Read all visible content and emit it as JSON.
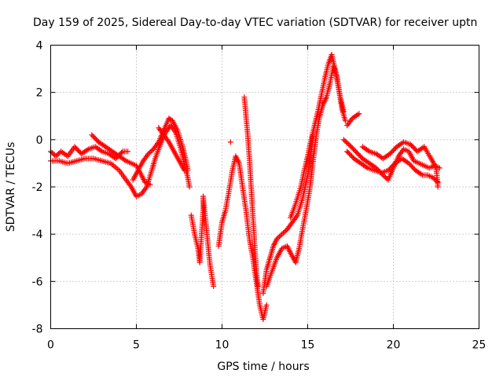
{
  "chart_data": {
    "type": "scatter",
    "title": "Day 159 of 2025, Sidereal Day-to-day VTEC variation (SDTVAR) for receiver uptn",
    "xlabel": "GPS time / hours",
    "ylabel": "SDTVAR / TECUs",
    "xlim": [
      0,
      25
    ],
    "ylim": [
      -8,
      4
    ],
    "x_ticks": [
      0,
      5,
      10,
      15,
      20,
      25
    ],
    "y_ticks": [
      -8,
      -6,
      -4,
      -2,
      0,
      2,
      4
    ],
    "x_tick_labels": [
      "0",
      "5",
      "10",
      "15",
      "20",
      "25"
    ],
    "y_tick_labels": [
      "-8",
      "-6",
      "-4",
      "-2",
      "0",
      "2",
      "4"
    ],
    "grid": true,
    "marker": "plus",
    "series": [
      {
        "name": "SDTVAR",
        "color": "#ff0000",
        "traces": [
          [
            [
              0,
              -0.5
            ],
            [
              0.3,
              -0.7
            ],
            [
              0.6,
              -0.5
            ],
            [
              1.0,
              -0.7
            ],
            [
              1.4,
              -0.3
            ],
            [
              1.8,
              -0.6
            ],
            [
              2.2,
              -0.4
            ],
            [
              2.6,
              -0.3
            ],
            [
              3.0,
              -0.5
            ],
            [
              3.4,
              -0.6
            ],
            [
              3.8,
              -0.8
            ],
            [
              4.2,
              -0.5
            ],
            [
              4.5,
              -0.5
            ]
          ],
          [
            [
              0,
              -0.9
            ],
            [
              0.5,
              -0.9
            ],
            [
              1.0,
              -1.0
            ],
            [
              1.5,
              -0.9
            ],
            [
              2.0,
              -0.8
            ],
            [
              2.5,
              -0.8
            ],
            [
              3.0,
              -0.9
            ],
            [
              3.5,
              -1.0
            ],
            [
              4.0,
              -1.3
            ],
            [
              4.4,
              -1.7
            ],
            [
              4.7,
              -2.0
            ],
            [
              5.0,
              -2.4
            ],
            [
              5.3,
              -2.3
            ],
            [
              5.6,
              -2.0
            ],
            [
              5.9,
              -1.3
            ],
            [
              6.1,
              -0.8
            ],
            [
              6.4,
              -0.2
            ],
            [
              6.7,
              0.3
            ],
            [
              7.0,
              0.6
            ],
            [
              7.3,
              0.3
            ],
            [
              7.6,
              -0.4
            ],
            [
              7.8,
              -1.0
            ],
            [
              8.0,
              -1.6
            ],
            [
              8.1,
              -2.0
            ]
          ],
          [
            [
              2.4,
              0.2
            ],
            [
              2.8,
              -0.1
            ],
            [
              3.2,
              -0.3
            ],
            [
              3.6,
              -0.5
            ],
            [
              4.0,
              -0.7
            ],
            [
              4.4,
              -0.9
            ],
            [
              4.7,
              -1.0
            ],
            [
              5.0,
              -1.1
            ],
            [
              5.3,
              -1.5
            ],
            [
              5.5,
              -1.8
            ],
            [
              5.8,
              -1.9
            ]
          ],
          [
            [
              4.8,
              -1.7
            ],
            [
              5.1,
              -1.3
            ],
            [
              5.4,
              -0.9
            ],
            [
              5.7,
              -0.6
            ],
            [
              6.0,
              -0.4
            ],
            [
              6.3,
              -0.1
            ],
            [
              6.6,
              0.4
            ],
            [
              6.9,
              0.9
            ],
            [
              7.1,
              0.8
            ],
            [
              7.4,
              0.4
            ],
            [
              7.7,
              -0.3
            ],
            [
              7.9,
              -0.9
            ],
            [
              8.0,
              -1.3
            ]
          ],
          [
            [
              6.3,
              0.5
            ],
            [
              6.6,
              0.2
            ],
            [
              6.9,
              -0.1
            ],
            [
              7.2,
              -0.5
            ],
            [
              7.5,
              -0.9
            ],
            [
              7.8,
              -1.3
            ]
          ],
          [
            [
              8.2,
              -3.2
            ],
            [
              8.4,
              -4.0
            ],
            [
              8.6,
              -4.6
            ],
            [
              8.7,
              -5.2
            ],
            [
              8.9,
              -3.0
            ],
            [
              8.9,
              -2.4
            ],
            [
              9.3,
              -5.3
            ],
            [
              9.5,
              -6.2
            ]
          ],
          [
            [
              9.8,
              -4.5
            ],
            [
              10.0,
              -3.5
            ],
            [
              10.2,
              -3.0
            ],
            [
              10.4,
              -2.2
            ],
            [
              10.6,
              -1.3
            ],
            [
              10.8,
              -0.7
            ],
            [
              11.0,
              -1.0
            ],
            [
              11.2,
              -2.0
            ],
            [
              11.4,
              -3.0
            ],
            [
              11.6,
              -4.2
            ],
            [
              11.8,
              -5.0
            ],
            [
              12.0,
              -6.0
            ],
            [
              12.2,
              -7.0
            ],
            [
              12.4,
              -7.6
            ],
            [
              12.6,
              -7.0
            ]
          ],
          [
            [
              10.5,
              -0.1
            ]
          ],
          [
            [
              11.3,
              1.8
            ],
            [
              11.4,
              1.0
            ],
            [
              11.5,
              0.2
            ],
            [
              11.6,
              -0.8
            ],
            [
              11.7,
              -2.0
            ],
            [
              11.8,
              -3.2
            ],
            [
              11.9,
              -4.4
            ],
            [
              12.0,
              -5.6
            ],
            [
              12.1,
              -6.2
            ]
          ],
          [
            [
              12.4,
              -6.5
            ],
            [
              12.6,
              -5.5
            ],
            [
              12.8,
              -5.0
            ],
            [
              13.0,
              -4.5
            ],
            [
              13.2,
              -4.2
            ],
            [
              13.5,
              -4.0
            ],
            [
              13.8,
              -3.8
            ],
            [
              14.1,
              -3.5
            ],
            [
              14.4,
              -3.2
            ],
            [
              14.7,
              -2.5
            ],
            [
              15.0,
              -1.5
            ],
            [
              15.2,
              -0.5
            ],
            [
              15.3,
              0.2
            ]
          ],
          [
            [
              12.6,
              -6.2
            ],
            [
              12.9,
              -5.6
            ],
            [
              13.2,
              -5.0
            ],
            [
              13.5,
              -4.6
            ],
            [
              13.8,
              -4.5
            ],
            [
              14.0,
              -4.8
            ],
            [
              14.3,
              -5.2
            ],
            [
              14.5,
              -4.6
            ],
            [
              14.7,
              -3.8
            ],
            [
              14.9,
              -3.0
            ],
            [
              15.1,
              -2.2
            ],
            [
              15.3,
              -1.0
            ],
            [
              15.5,
              0.2
            ],
            [
              15.7,
              1.0
            ],
            [
              15.9,
              1.5
            ],
            [
              16.1,
              1.8
            ],
            [
              16.3,
              2.4
            ],
            [
              16.5,
              3.1
            ],
            [
              16.7,
              2.7
            ],
            [
              16.9,
              1.8
            ],
            [
              17.1,
              1.2
            ]
          ],
          [
            [
              14.0,
              -3.3
            ],
            [
              14.3,
              -2.7
            ],
            [
              14.6,
              -2.0
            ],
            [
              14.8,
              -1.3
            ],
            [
              15.0,
              -0.7
            ],
            [
              15.2,
              0.0
            ],
            [
              15.4,
              0.6
            ],
            [
              15.6,
              1.2
            ],
            [
              15.8,
              1.9
            ],
            [
              16.0,
              2.6
            ],
            [
              16.2,
              3.2
            ],
            [
              16.4,
              3.6
            ],
            [
              16.6,
              3.0
            ],
            [
              16.8,
              2.2
            ],
            [
              17.0,
              1.3
            ],
            [
              17.2,
              0.8
            ]
          ],
          [
            [
              17.3,
              0.6
            ],
            [
              17.6,
              0.9
            ],
            [
              18.0,
              1.1
            ]
          ],
          [
            [
              17.1,
              0.0
            ],
            [
              17.4,
              -0.2
            ],
            [
              17.8,
              -0.5
            ],
            [
              18.2,
              -0.8
            ],
            [
              18.6,
              -1.0
            ],
            [
              19.0,
              -1.2
            ],
            [
              19.4,
              -1.5
            ],
            [
              19.7,
              -1.7
            ],
            [
              20.0,
              -1.2
            ],
            [
              20.3,
              -0.7
            ],
            [
              20.6,
              -0.4
            ],
            [
              20.9,
              -0.5
            ],
            [
              21.2,
              -0.9
            ],
            [
              21.5,
              -1.0
            ],
            [
              21.8,
              -1.1
            ],
            [
              22.1,
              -1.2
            ],
            [
              22.4,
              -1.1
            ],
            [
              22.7,
              -1.2
            ]
          ],
          [
            [
              17.3,
              -0.5
            ],
            [
              17.7,
              -0.8
            ],
            [
              18.1,
              -1.0
            ],
            [
              18.5,
              -1.2
            ],
            [
              18.9,
              -1.3
            ],
            [
              19.3,
              -1.4
            ],
            [
              19.7,
              -1.3
            ],
            [
              20.1,
              -1.0
            ],
            [
              20.5,
              -0.8
            ],
            [
              20.9,
              -1.0
            ],
            [
              21.3,
              -1.3
            ],
            [
              21.7,
              -1.5
            ],
            [
              22.0,
              -1.5
            ],
            [
              22.3,
              -1.6
            ],
            [
              22.6,
              -1.8
            ]
          ],
          [
            [
              18.2,
              -0.3
            ],
            [
              18.6,
              -0.5
            ],
            [
              19.0,
              -0.6
            ],
            [
              19.4,
              -0.8
            ],
            [
              19.8,
              -0.6
            ],
            [
              20.2,
              -0.3
            ],
            [
              20.6,
              -0.1
            ],
            [
              21.0,
              -0.2
            ],
            [
              21.4,
              -0.5
            ],
            [
              21.8,
              -0.3
            ],
            [
              22.2,
              -0.8
            ],
            [
              22.5,
              -1.2
            ],
            [
              22.6,
              -2.0
            ]
          ]
        ]
      }
    ]
  }
}
